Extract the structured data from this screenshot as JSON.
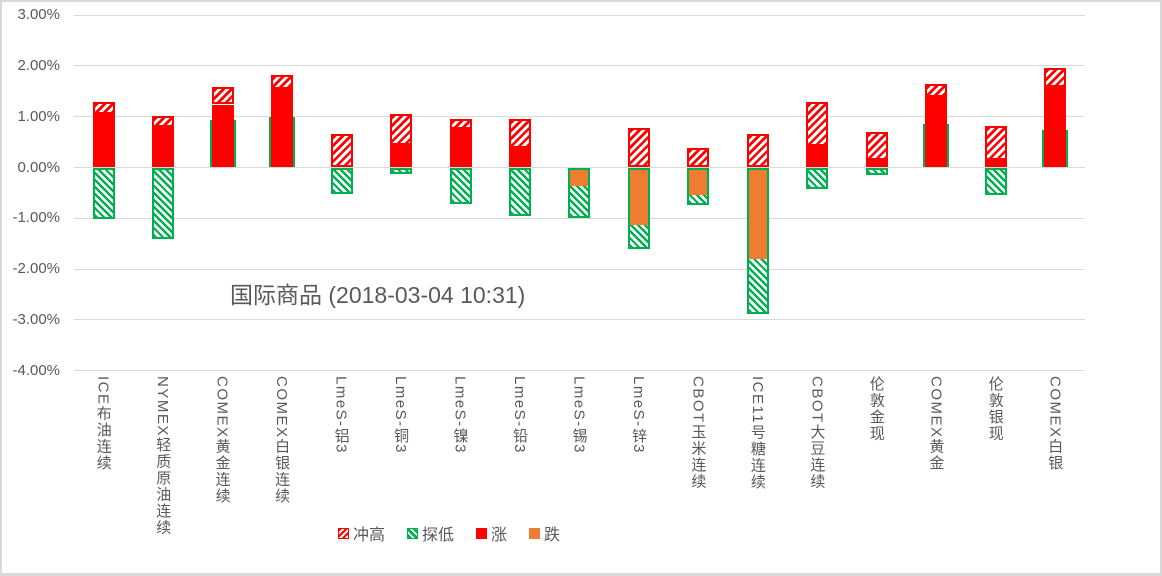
{
  "title": "国际商品 (2018-03-04 10:31)",
  "colors": {
    "rise_red": "#ff0000",
    "fall_orange": "#ed7d31",
    "range_green": "#00b050",
    "gridline": "#d9d9d9",
    "text_gray": "#595959"
  },
  "legend": {
    "items": [
      {
        "label": "冲高",
        "swatch": "red-hatch"
      },
      {
        "label": "探低",
        "swatch": "green-hatch"
      },
      {
        "label": "涨",
        "swatch": "red"
      },
      {
        "label": "跌",
        "swatch": "orange"
      }
    ]
  },
  "chart_data": {
    "type": "bar",
    "title": "国际商品 (2018-03-04 10:31)",
    "xlabel": "",
    "ylabel": "",
    "ylim": [
      -4,
      3
    ],
    "grid": true,
    "legend_position": "bottom",
    "y_ticks": [
      "3.00%",
      "2.00%",
      "1.00%",
      "0.00%",
      "-1.00%",
      "-2.00%",
      "-3.00%",
      "-4.00%"
    ],
    "y_tick_values": [
      3,
      2,
      1,
      0,
      -1,
      -2,
      -3,
      -4
    ],
    "unit": "percent",
    "categories": [
      "ICE布油连续",
      "NYMEX轻质原油连续",
      "COMEX黄金连续",
      "COMEX白银连续",
      "LmeS-铝3",
      "LmeS-铜3",
      "LmeS-镍3",
      "LmeS-铅3",
      "LmeS-锡3",
      "LmeS-锌3",
      "CBOT玉米连续",
      "ICE11号糖连续",
      "CBOT大豆连续",
      "伦敦金现",
      "COMEX黄金",
      "伦敦银现",
      "COMEX白银"
    ],
    "series": [
      {
        "name": "冲高",
        "values": [
          1.28,
          1.01,
          1.59,
          1.83,
          0.65,
          1.06,
          0.95,
          0.95,
          0.02,
          0.77,
          0.38,
          0.65,
          1.28,
          0.7,
          1.64,
          0.82,
          1.95
        ]
      },
      {
        "name": "探低",
        "values": [
          -1.02,
          -1.4,
          0.94,
          0.99,
          -0.52,
          -0.12,
          -0.71,
          -0.95,
          -1.0,
          -1.61,
          -0.73,
          -2.88,
          -0.42,
          -0.15,
          0.86,
          -0.54,
          0.74
        ]
      },
      {
        "name": "涨",
        "values": [
          1.06,
          0.79,
          1.24,
          1.55,
          0,
          0.44,
          0.76,
          0.38,
          0,
          0,
          0,
          0,
          0.42,
          0.15,
          1.39,
          0.14,
          1.58
        ]
      },
      {
        "name": "跌",
        "values": [
          0,
          0,
          0,
          0,
          0,
          0,
          0,
          0,
          -0.4,
          -1.17,
          -0.58,
          -1.85,
          0,
          0,
          0,
          0,
          0
        ]
      }
    ]
  }
}
